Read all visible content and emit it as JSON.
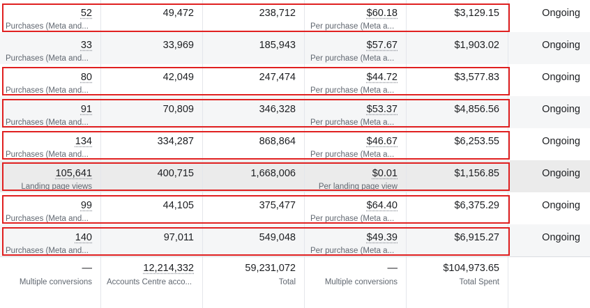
{
  "rows": [
    {
      "results": "52",
      "results_label": "Purchases (Meta and...",
      "reach": "49,472",
      "impressions": "238,712",
      "cost": "$60.18",
      "cost_label": "Per purchase (Meta a...",
      "spent": "$3,129.15",
      "status": "Ongoing"
    },
    {
      "results": "33",
      "results_label": "Purchases (Meta and...",
      "reach": "33,969",
      "impressions": "185,943",
      "cost": "$57.67",
      "cost_label": "Per purchase (Meta a...",
      "spent": "$1,903.02",
      "status": "Ongoing"
    },
    {
      "results": "80",
      "results_label": "Purchases (Meta and...",
      "reach": "42,049",
      "impressions": "247,474",
      "cost": "$44.72",
      "cost_label": "Per purchase (Meta a...",
      "spent": "$3,577.83",
      "status": "Ongoing"
    },
    {
      "results": "91",
      "results_label": "Purchases (Meta and...",
      "reach": "70,809",
      "impressions": "346,328",
      "cost": "$53.37",
      "cost_label": "Per purchase (Meta a...",
      "spent": "$4,856.56",
      "status": "Ongoing"
    },
    {
      "results": "134",
      "results_label": "Purchases (Meta and...",
      "reach": "334,287",
      "impressions": "868,864",
      "cost": "$46.67",
      "cost_label": "Per purchase (Meta a...",
      "spent": "$6,253.55",
      "status": "Ongoing"
    },
    {
      "results": "105,641",
      "results_label": "Landing page views",
      "reach": "400,715",
      "impressions": "1,668,006",
      "cost": "$0.01",
      "cost_label": "Per landing page view",
      "spent": "$1,156.85",
      "status": "Ongoing"
    },
    {
      "results": "99",
      "results_label": "Purchases (Meta and...",
      "reach": "44,105",
      "impressions": "375,477",
      "cost": "$64.40",
      "cost_label": "Per purchase (Meta a...",
      "spent": "$6,375.29",
      "status": "Ongoing"
    },
    {
      "results": "140",
      "results_label": "Purchases (Meta and...",
      "reach": "97,011",
      "impressions": "549,048",
      "cost": "$49.39",
      "cost_label": "Per purchase (Meta a...",
      "spent": "$6,915.27",
      "status": "Ongoing"
    }
  ],
  "totals": {
    "results": "—",
    "results_label": "Multiple conversions",
    "reach": "12,214,332",
    "reach_label": "Accounts Centre acco...",
    "impressions": "59,231,072",
    "impressions_label": "Total",
    "cost": "—",
    "cost_label": "Multiple conversions",
    "spent": "$104,973.65",
    "spent_label": "Total Spent"
  },
  "highlight_color": "#e02020"
}
